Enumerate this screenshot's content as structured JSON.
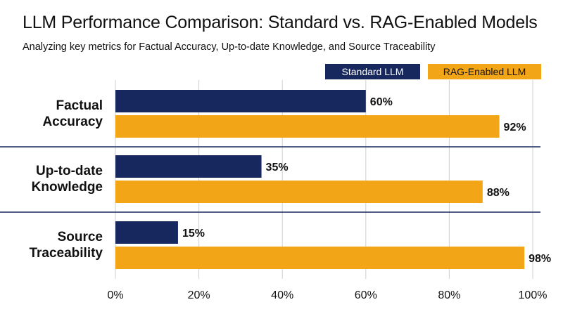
{
  "title": "LLM Performance Comparison: Standard vs. RAG-Enabled Models",
  "subtitle": "Analyzing key metrics for Factual Accuracy, Up-to-date Knowledge, and Source Traceability",
  "colors": {
    "standard": "#17285e",
    "rag": "#f2a516",
    "grid": "#cfcfcf",
    "separator": "#17285e",
    "text": "#111111"
  },
  "chart_data": {
    "type": "bar",
    "orientation": "horizontal",
    "categories": [
      [
        "Factual",
        "Accuracy"
      ],
      [
        "Up-to-date",
        "Knowledge"
      ],
      [
        "Source",
        "Traceability"
      ]
    ],
    "series": [
      {
        "name": "Standard LLM",
        "values": [
          60,
          35,
          15
        ],
        "labels": [
          "60%",
          "35%",
          "15%"
        ]
      },
      {
        "name": "RAG-Enabled LLM",
        "values": [
          92,
          88,
          98
        ],
        "labels": [
          "92%",
          "88%",
          "98%"
        ]
      }
    ],
    "xlim": [
      0,
      100
    ],
    "xticks": [
      0,
      20,
      40,
      60,
      80,
      100
    ],
    "xtick_labels": [
      "0%",
      "20%",
      "40%",
      "60%",
      "80%",
      "100%"
    ],
    "grid": true,
    "legend_position": "top-right"
  }
}
